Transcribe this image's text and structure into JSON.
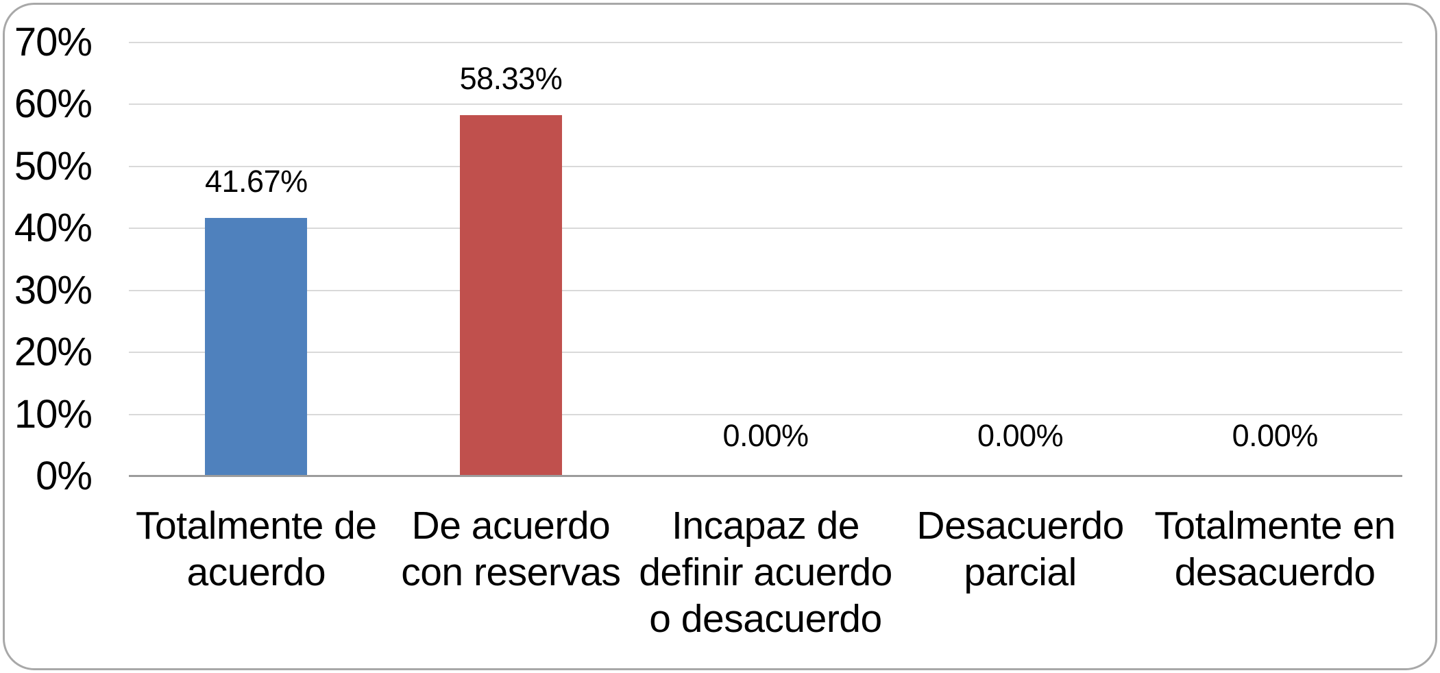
{
  "chart_data": {
    "type": "bar",
    "title": "",
    "categories": [
      "Totalmente de acuerdo",
      "De acuerdo con reservas",
      "Incapaz de definir acuerdo o desacuerdo",
      "Desacuerdo parcial",
      "Totalmente en desacuerdo"
    ],
    "category_lines": [
      [
        "Totalmente de",
        "acuerdo"
      ],
      [
        "De acuerdo",
        "con reservas"
      ],
      [
        "Incapaz de",
        "definir acuerdo",
        "o desacuerdo"
      ],
      [
        "Desacuerdo",
        "parcial"
      ],
      [
        "Totalmente en",
        "desacuerdo"
      ]
    ],
    "values": [
      41.67,
      58.33,
      0,
      0,
      0
    ],
    "data_labels": [
      "41.67%",
      "58.33%",
      "0.00%",
      "0.00%",
      "0.00%"
    ],
    "bar_colors": [
      "#4F81BD",
      "#C0504D"
    ],
    "xlabel": "",
    "ylabel": "",
    "ylim": [
      0,
      70
    ],
    "ytick_step": 10,
    "ytick_labels": [
      "0%",
      "10%",
      "20%",
      "30%",
      "40%",
      "50%",
      "60%",
      "70%"
    ],
    "grid": true,
    "legend": "none"
  },
  "style": {
    "gridline_color": "#D9D9D9",
    "axis_line_color": "#9C9C9C",
    "text_color": "#000000",
    "frame_border_color": "#A8A8A8",
    "background_color": "#FFFFFF"
  }
}
